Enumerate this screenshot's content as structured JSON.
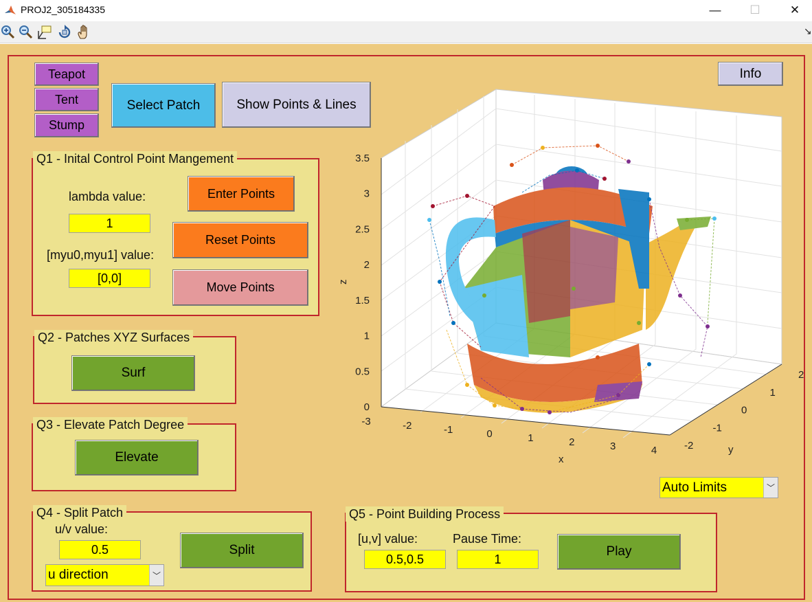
{
  "window": {
    "title": "PROJ2_305184335",
    "minimize": "—",
    "maximize": "☐",
    "close": "✕"
  },
  "toolbar": {
    "tools": [
      "zoom-in-icon",
      "zoom-out-icon",
      "data-cursor-icon",
      "rotate-3d-icon",
      "pan-hand-icon"
    ],
    "overflow": "↘"
  },
  "shape_buttons": {
    "teapot": "Teapot",
    "tent": "Tent",
    "stump": "Stump"
  },
  "top_buttons": {
    "select_patch": "Select Patch",
    "show_points": "Show Points & Lines",
    "info": "Info"
  },
  "q1": {
    "title": "Q1 - Inital Control Point Mangement",
    "lambda_label": "lambda value:",
    "lambda_value": "1",
    "myu_label": "[myu0,myu1] value:",
    "myu_value": "[0,0]",
    "enter": "Enter Points",
    "reset": "Reset Points",
    "move": "Move Points"
  },
  "q2": {
    "title": "Q2 - Patches XYZ Surfaces",
    "surf": "Surf"
  },
  "q3": {
    "title": "Q3 - Elevate Patch Degree",
    "elevate": "Elevate"
  },
  "q4": {
    "title": "Q4 - Split Patch",
    "uv_label": "u/v value:",
    "uv_value": "0.5",
    "direction": "u direction",
    "split": "Split"
  },
  "q5": {
    "title": "Q5 - Point Building Process",
    "uv_label": "[u,v] value:",
    "uv_value": "0.5,0.5",
    "pause_label": "Pause Time:",
    "pause_value": "1",
    "play": "Play"
  },
  "limits_select": "Auto Limits",
  "axes": {
    "zlabel": "z",
    "xlabel": "x",
    "ylabel": "y",
    "z_ticks": [
      "0",
      "0.5",
      "1",
      "1.5",
      "2",
      "2.5",
      "3",
      "3.5"
    ],
    "x_ticks": [
      "-3",
      "-2",
      "-1",
      "0",
      "1",
      "2",
      "3",
      "4"
    ],
    "y_ticks": [
      "-2",
      "-1",
      "0",
      "1",
      "2"
    ]
  },
  "colors": {
    "panel_border": "#c0262c",
    "figure_bg": "#edca7e",
    "group_bg": "#ede28f",
    "surface_palette": [
      "#0072bd",
      "#d95319",
      "#edb120",
      "#7e2f8e",
      "#77ac30",
      "#4dbeee",
      "#a2142f"
    ]
  }
}
